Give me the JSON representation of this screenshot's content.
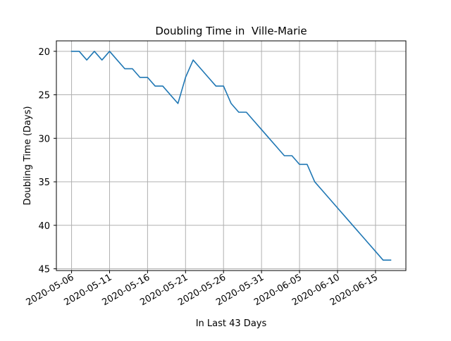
{
  "chart_data": {
    "type": "line",
    "title": "Doubling Time in  Ville-Marie",
    "xlabel": "In Last 43 Days",
    "ylabel": "Doubling Time (Days)",
    "x_type": "date",
    "x_range": [
      "2020-05-06",
      "2020-06-17"
    ],
    "xlim": [
      "2020-05-04",
      "2020-06-19"
    ],
    "ylim": [
      45.2,
      18.8
    ],
    "y_inverted": true,
    "grid": true,
    "x_ticks": [
      "2020-05-06",
      "2020-05-11",
      "2020-05-16",
      "2020-05-21",
      "2020-05-26",
      "2020-05-31",
      "2020-06-05",
      "2020-06-10",
      "2020-06-15"
    ],
    "y_ticks": [
      20,
      25,
      30,
      35,
      40,
      45
    ],
    "series": [
      {
        "color": "#1f77b4",
        "x": [
          "2020-05-06",
          "2020-05-07",
          "2020-05-08",
          "2020-05-09",
          "2020-05-10",
          "2020-05-11",
          "2020-05-12",
          "2020-05-13",
          "2020-05-14",
          "2020-05-15",
          "2020-05-16",
          "2020-05-17",
          "2020-05-18",
          "2020-05-19",
          "2020-05-20",
          "2020-05-21",
          "2020-05-22",
          "2020-05-23",
          "2020-05-24",
          "2020-05-25",
          "2020-05-26",
          "2020-05-27",
          "2020-05-28",
          "2020-05-29",
          "2020-05-30",
          "2020-05-31",
          "2020-06-01",
          "2020-06-02",
          "2020-06-03",
          "2020-06-04",
          "2020-06-05",
          "2020-06-06",
          "2020-06-07",
          "2020-06-08",
          "2020-06-09",
          "2020-06-10",
          "2020-06-11",
          "2020-06-12",
          "2020-06-13",
          "2020-06-14",
          "2020-06-15",
          "2020-06-16",
          "2020-06-17"
        ],
        "y": [
          20,
          20,
          21,
          20,
          21,
          20,
          21,
          22,
          22,
          23,
          23,
          24,
          24,
          25,
          26,
          23,
          21,
          22,
          23,
          24,
          24,
          26,
          27,
          27,
          28,
          29,
          30,
          31,
          32,
          32,
          33,
          33,
          35,
          36,
          37,
          38,
          39,
          40,
          41,
          42,
          43,
          44,
          44
        ]
      }
    ]
  }
}
